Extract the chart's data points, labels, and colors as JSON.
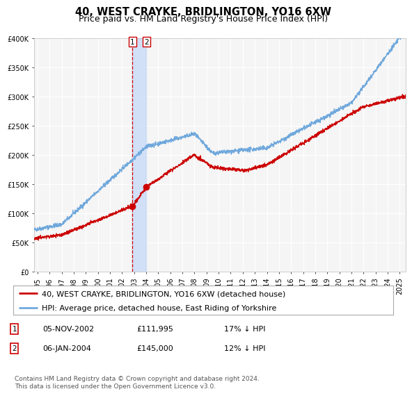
{
  "title": "40, WEST CRAYKE, BRIDLINGTON, YO16 6XW",
  "subtitle": "Price paid vs. HM Land Registry's House Price Index (HPI)",
  "legend1_text": "40, WEST CRAYKE, BRIDLINGTON, YO16 6XW (detached house)",
  "legend2_text": "HPI: Average price, detached house, East Riding of Yorkshire",
  "annotation_table": [
    {
      "num": "1",
      "date": "05-NOV-2002",
      "price": "£111,995",
      "change": "17% ↓ HPI"
    },
    {
      "num": "2",
      "date": "06-JAN-2004",
      "price": "£145,000",
      "change": "12% ↓ HPI"
    }
  ],
  "footer": "Contains HM Land Registry data © Crown copyright and database right 2024.\nThis data is licensed under the Open Government Licence v3.0.",
  "sale1_year": 2002.85,
  "sale1_price": 111995,
  "sale2_year": 2004.02,
  "sale2_price": 145000,
  "hpi_color": "#6fa8dc",
  "price_color": "#cc0000",
  "vline_color": "#cc0000",
  "shade_color": "#c9daf8",
  "ylim": [
    0,
    400000
  ],
  "xlim_start": 1994.7,
  "xlim_end": 2025.5,
  "yticks": [
    0,
    50000,
    100000,
    150000,
    200000,
    250000,
    300000,
    350000,
    400000
  ],
  "ytick_labels": [
    "£0",
    "£50K",
    "£100K",
    "£150K",
    "£200K",
    "£250K",
    "£300K",
    "£350K",
    "£400K"
  ],
  "xticks": [
    1995,
    1996,
    1997,
    1998,
    1999,
    2000,
    2001,
    2002,
    2003,
    2004,
    2005,
    2006,
    2007,
    2008,
    2009,
    2010,
    2011,
    2012,
    2013,
    2014,
    2015,
    2016,
    2017,
    2018,
    2019,
    2020,
    2021,
    2022,
    2023,
    2024,
    2025
  ],
  "xtick_labels": [
    "1995",
    "1996",
    "1997",
    "1998",
    "1999",
    "2000",
    "2001",
    "2002",
    "2003",
    "2004",
    "2005",
    "2006",
    "2007",
    "2008",
    "2009",
    "2010",
    "2011",
    "2012",
    "2013",
    "2014",
    "2015",
    "2016",
    "2017",
    "2018",
    "2019",
    "2020",
    "2021",
    "2022",
    "2023",
    "2024",
    "2025"
  ],
  "title_fontsize": 10.5,
  "subtitle_fontsize": 9,
  "tick_fontsize": 7,
  "legend_fontsize": 8,
  "annotation_fontsize": 8,
  "footer_fontsize": 6.5,
  "bg_color": "#f5f5f5"
}
